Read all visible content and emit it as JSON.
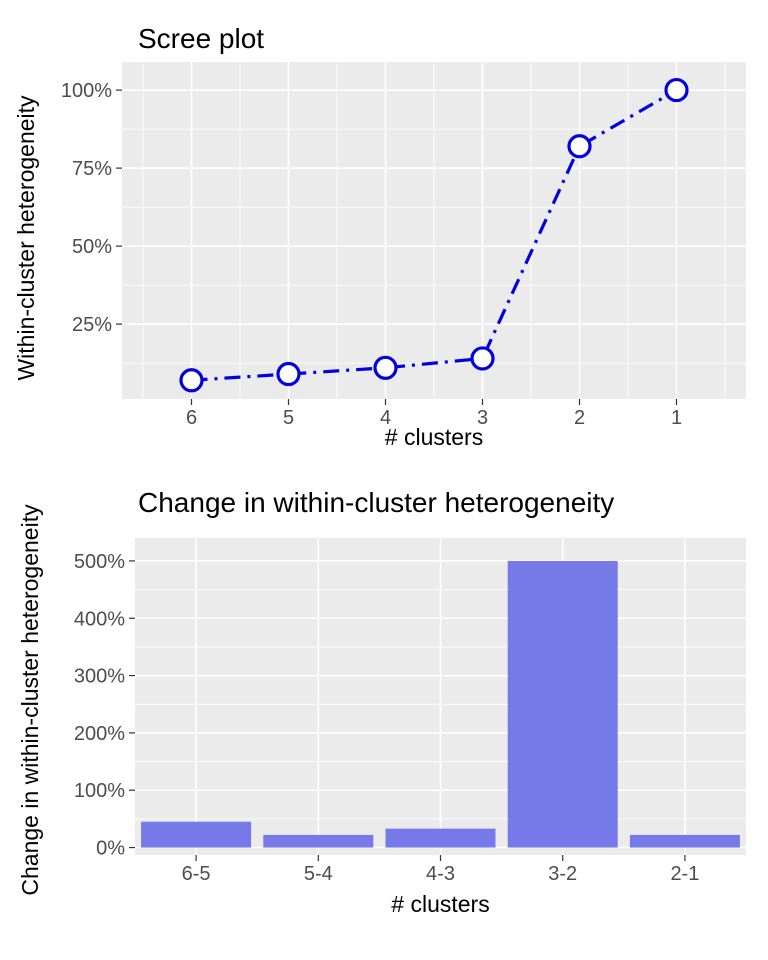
{
  "figure": {
    "background": "#FFFFFF",
    "panel_background": "#EBEBEB",
    "grid_color": "#FFFFFF",
    "tick_mark_color": "#333333",
    "tick_label_color": "#4D4D4D",
    "text_color": "#000000"
  },
  "chart_data": [
    {
      "type": "line",
      "title": "Scree plot",
      "xlabel": "# clusters",
      "ylabel": "Within-cluster heterogeneity",
      "x": [
        6,
        5,
        4,
        3,
        2,
        1
      ],
      "values": [
        7,
        9,
        11,
        14,
        82,
        100
      ],
      "x_tick_labels": [
        "6",
        "5",
        "4",
        "3",
        "2",
        "1"
      ],
      "y_ticks": [
        25,
        50,
        75,
        100
      ],
      "y_tick_labels": [
        "25%",
        "50%",
        "75%",
        "100%"
      ],
      "ylim": [
        1,
        109
      ],
      "x_axis_reversed": true,
      "line_color": "#0000E0",
      "line_style": "dotdash",
      "marker": "open-circle",
      "marker_fill": "#FFFFFF",
      "grid": "on",
      "legend": "none"
    },
    {
      "type": "bar",
      "title": "Change in within-cluster heterogeneity",
      "xlabel": "# clusters",
      "ylabel": "Change in within-cluster heterogeneity",
      "categories": [
        "6-5",
        "5-4",
        "4-3",
        "3-2",
        "2-1"
      ],
      "values": [
        45,
        22,
        33,
        500,
        22
      ],
      "y_ticks": [
        0,
        100,
        200,
        300,
        400,
        500
      ],
      "y_tick_labels": [
        "0%",
        "100%",
        "200%",
        "300%",
        "400%",
        "500%"
      ],
      "ylim": [
        -13,
        540
      ],
      "bar_color": "#7679E8",
      "grid": "on",
      "legend": "none"
    }
  ]
}
